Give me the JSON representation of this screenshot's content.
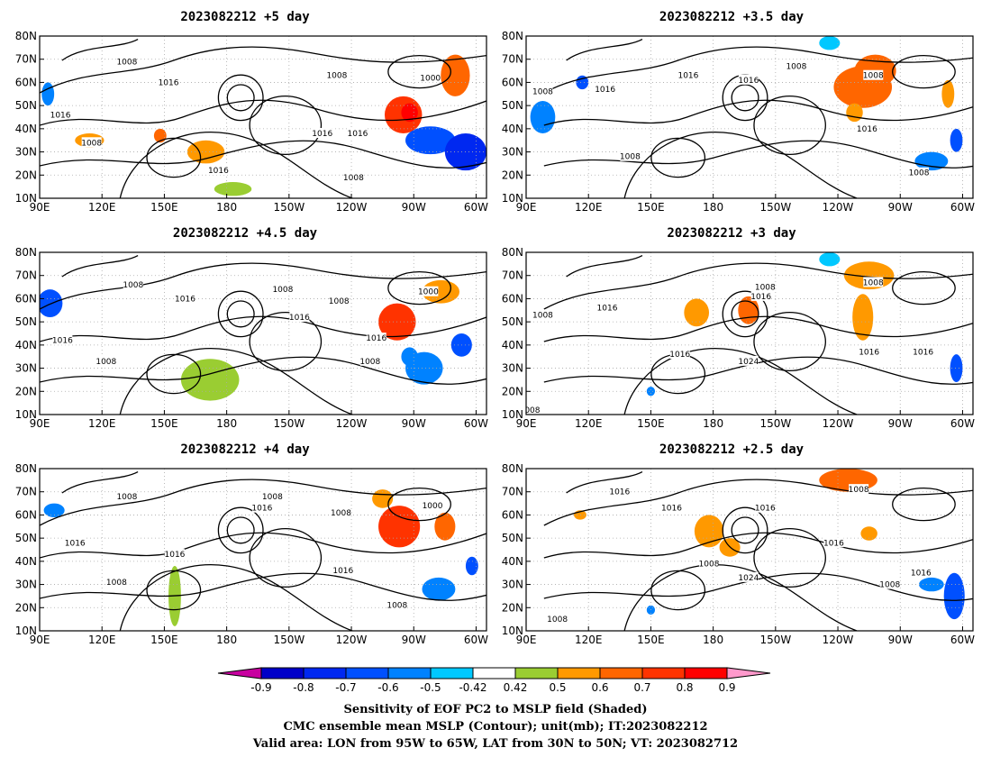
{
  "panels": [
    {
      "title": "2023082212 +5 day",
      "xticks": [
        "90E",
        "120E",
        "150E",
        "180",
        "150W",
        "120W",
        "90W",
        "60W"
      ],
      "yticks": [
        "10N",
        "20N",
        "30N",
        "40N",
        "50N",
        "60N",
        "70N",
        "80N"
      ],
      "contour_labels": [
        {
          "text": "1008",
          "lon": 132,
          "lat": 69
        },
        {
          "text": "1008",
          "lon": 233,
          "lat": 63
        },
        {
          "text": "1016",
          "lon": 152,
          "lat": 60
        },
        {
          "text": "1000",
          "lon": 278,
          "lat": 62
        },
        {
          "text": "1016",
          "lon": 100,
          "lat": 46
        },
        {
          "text": "1008",
          "lon": 115,
          "lat": 34
        },
        {
          "text": "1016",
          "lon": 226,
          "lat": 38
        },
        {
          "text": "1016",
          "lon": 243,
          "lat": 38
        },
        {
          "text": "1016",
          "lon": 176,
          "lat": 22
        },
        {
          "text": "1008",
          "lon": 241,
          "lat": 19
        }
      ],
      "shading": [
        {
          "lon": 265,
          "lat": 46,
          "rx": 9,
          "ry": 8,
          "v": 0.7
        },
        {
          "lon": 268,
          "lat": 47,
          "rx": 4,
          "ry": 4,
          "v": 0.85
        },
        {
          "lon": 290,
          "lat": 63,
          "rx": 7,
          "ry": 9,
          "v": 0.6
        },
        {
          "lon": 278,
          "lat": 35,
          "rx": 12,
          "ry": 6,
          "v": -0.7
        },
        {
          "lon": 295,
          "lat": 30,
          "rx": 10,
          "ry": 8,
          "v": -0.75
        },
        {
          "lon": 170,
          "lat": 30,
          "rx": 9,
          "ry": 5,
          "v": 0.5
        },
        {
          "lon": 183,
          "lat": 14,
          "rx": 9,
          "ry": 3,
          "v": 0.45
        },
        {
          "lon": 148,
          "lat": 37,
          "rx": 3,
          "ry": 3,
          "v": 0.6
        },
        {
          "lon": 114,
          "lat": 35,
          "rx": 7,
          "ry": 3,
          "v": 0.5
        },
        {
          "lon": 94,
          "lat": 55,
          "rx": 3,
          "ry": 5,
          "v": -0.6
        }
      ]
    },
    {
      "title": "2023082212 +3.5 day",
      "xticks": [
        "90E",
        "120E",
        "150E",
        "180",
        "150W",
        "120W",
        "90W",
        "60W"
      ],
      "yticks": [
        "10N",
        "20N",
        "30N",
        "40N",
        "50N",
        "60N",
        "70N",
        "80N"
      ],
      "contour_labels": [
        {
          "text": "1008",
          "lon": 98,
          "lat": 56
        },
        {
          "text": "1016",
          "lon": 128,
          "lat": 57
        },
        {
          "text": "1016",
          "lon": 168,
          "lat": 63
        },
        {
          "text": "1016",
          "lon": 197,
          "lat": 61
        },
        {
          "text": "1008",
          "lon": 220,
          "lat": 67
        },
        {
          "text": "1008",
          "lon": 257,
          "lat": 63
        },
        {
          "text": "1016",
          "lon": 254,
          "lat": 40
        },
        {
          "text": "1008",
          "lon": 140,
          "lat": 28
        },
        {
          "text": "1008",
          "lon": 279,
          "lat": 21
        }
      ],
      "shading": [
        {
          "lon": 252,
          "lat": 58,
          "rx": 14,
          "ry": 9,
          "v": 0.6
        },
        {
          "lon": 258,
          "lat": 65,
          "rx": 10,
          "ry": 7,
          "v": 0.65
        },
        {
          "lon": 248,
          "lat": 47,
          "rx": 4,
          "ry": 4,
          "v": 0.5
        },
        {
          "lon": 293,
          "lat": 55,
          "rx": 3,
          "ry": 6,
          "v": 0.55
        },
        {
          "lon": 98,
          "lat": 45,
          "rx": 6,
          "ry": 7,
          "v": -0.6
        },
        {
          "lon": 117,
          "lat": 60,
          "rx": 3,
          "ry": 3,
          "v": -0.65
        },
        {
          "lon": 285,
          "lat": 26,
          "rx": 8,
          "ry": 4,
          "v": -0.55
        },
        {
          "lon": 297,
          "lat": 35,
          "rx": 3,
          "ry": 5,
          "v": -0.7
        },
        {
          "lon": 236,
          "lat": 77,
          "rx": 5,
          "ry": 3,
          "v": -0.5
        }
      ]
    },
    {
      "title": "2023082212 +4.5 day",
      "xticks": [
        "90E",
        "120E",
        "150E",
        "180",
        "150W",
        "120W",
        "90W",
        "60W"
      ],
      "yticks": [
        "10N",
        "20N",
        "30N",
        "40N",
        "50N",
        "60N",
        "70N",
        "80N"
      ],
      "contour_labels": [
        {
          "text": "1008",
          "lon": 135,
          "lat": 66
        },
        {
          "text": "1016",
          "lon": 160,
          "lat": 60
        },
        {
          "text": "1008",
          "lon": 207,
          "lat": 64
        },
        {
          "text": "1008",
          "lon": 234,
          "lat": 59
        },
        {
          "text": "1000",
          "lon": 277,
          "lat": 63
        },
        {
          "text": "1016",
          "lon": 215,
          "lat": 52
        },
        {
          "text": "1016",
          "lon": 101,
          "lat": 42
        },
        {
          "text": "1008",
          "lon": 122,
          "lat": 33
        },
        {
          "text": "1016",
          "lon": 252,
          "lat": 43
        },
        {
          "text": "1008",
          "lon": 249,
          "lat": 33
        }
      ],
      "shading": [
        {
          "lon": 262,
          "lat": 50,
          "rx": 9,
          "ry": 8,
          "v": 0.7
        },
        {
          "lon": 283,
          "lat": 63,
          "rx": 9,
          "ry": 5,
          "v": 0.5
        },
        {
          "lon": 172,
          "lat": 25,
          "rx": 14,
          "ry": 9,
          "v": 0.45
        },
        {
          "lon": 95,
          "lat": 58,
          "rx": 6,
          "ry": 6,
          "v": -0.65
        },
        {
          "lon": 275,
          "lat": 30,
          "rx": 9,
          "ry": 7,
          "v": -0.6
        },
        {
          "lon": 293,
          "lat": 40,
          "rx": 5,
          "ry": 5,
          "v": -0.7
        },
        {
          "lon": 268,
          "lat": 35,
          "rx": 4,
          "ry": 4,
          "v": -0.55
        }
      ]
    },
    {
      "title": "2023082212 +3 day",
      "xticks": [
        "90E",
        "120E",
        "150E",
        "180",
        "150W",
        "120W",
        "90W",
        "60W"
      ],
      "yticks": [
        "10N",
        "20N",
        "30N",
        "40N",
        "50N",
        "60N",
        "70N",
        "80N"
      ],
      "contour_labels": [
        {
          "text": "1008",
          "lon": 98,
          "lat": 53
        },
        {
          "text": "1016",
          "lon": 129,
          "lat": 56
        },
        {
          "text": "1008",
          "lon": 205,
          "lat": 65
        },
        {
          "text": "1016",
          "lon": 203,
          "lat": 61
        },
        {
          "text": "1008",
          "lon": 257,
          "lat": 67
        },
        {
          "text": "1016",
          "lon": 164,
          "lat": 36
        },
        {
          "text": "1024",
          "lon": 197,
          "lat": 33
        },
        {
          "text": "1016",
          "lon": 255,
          "lat": 37
        },
        {
          "text": "1016",
          "lon": 281,
          "lat": 37
        },
        {
          "text": "008",
          "lon": 93,
          "lat": 12
        }
      ],
      "shading": [
        {
          "lon": 172,
          "lat": 54,
          "rx": 6,
          "ry": 6,
          "v": 0.55
        },
        {
          "lon": 197,
          "lat": 55,
          "rx": 5,
          "ry": 6,
          "v": 0.6
        },
        {
          "lon": 252,
          "lat": 52,
          "rx": 5,
          "ry": 10,
          "v": 0.55
        },
        {
          "lon": 255,
          "lat": 70,
          "rx": 12,
          "ry": 6,
          "v": 0.5
        },
        {
          "lon": 236,
          "lat": 77,
          "rx": 5,
          "ry": 3,
          "v": -0.5
        },
        {
          "lon": 297,
          "lat": 30,
          "rx": 3,
          "ry": 6,
          "v": -0.65
        },
        {
          "lon": 150,
          "lat": 20,
          "rx": 2,
          "ry": 2,
          "v": -0.55
        }
      ]
    },
    {
      "title": "2023082212 +4 day",
      "xticks": [
        "90E",
        "120E",
        "150E",
        "180",
        "150W",
        "120W",
        "90W",
        "60W"
      ],
      "yticks": [
        "10N",
        "20N",
        "30N",
        "40N",
        "50N",
        "60N",
        "70N",
        "80N"
      ],
      "contour_labels": [
        {
          "text": "1008",
          "lon": 132,
          "lat": 68
        },
        {
          "text": "1008",
          "lon": 202,
          "lat": 68
        },
        {
          "text": "1016",
          "lon": 197,
          "lat": 63
        },
        {
          "text": "1008",
          "lon": 235,
          "lat": 61
        },
        {
          "text": "1000",
          "lon": 279,
          "lat": 64
        },
        {
          "text": "1016",
          "lon": 107,
          "lat": 48
        },
        {
          "text": "1016",
          "lon": 155,
          "lat": 43
        },
        {
          "text": "1008",
          "lon": 127,
          "lat": 31
        },
        {
          "text": "1016",
          "lon": 236,
          "lat": 36
        },
        {
          "text": "1008",
          "lon": 262,
          "lat": 21
        }
      ],
      "shading": [
        {
          "lon": 263,
          "lat": 55,
          "rx": 10,
          "ry": 9,
          "v": 0.7
        },
        {
          "lon": 285,
          "lat": 55,
          "rx": 5,
          "ry": 6,
          "v": 0.6
        },
        {
          "lon": 255,
          "lat": 67,
          "rx": 5,
          "ry": 4,
          "v": 0.5
        },
        {
          "lon": 155,
          "lat": 25,
          "rx": 3,
          "ry": 13,
          "v": 0.45
        },
        {
          "lon": 97,
          "lat": 62,
          "rx": 5,
          "ry": 3,
          "v": -0.6
        },
        {
          "lon": 282,
          "lat": 28,
          "rx": 8,
          "ry": 5,
          "v": -0.6
        },
        {
          "lon": 298,
          "lat": 38,
          "rx": 3,
          "ry": 4,
          "v": -0.7
        }
      ]
    },
    {
      "title": "2023082212 +2.5 day",
      "xticks": [
        "90E",
        "120E",
        "150E",
        "180",
        "150W",
        "120W",
        "90W",
        "60W"
      ],
      "yticks": [
        "10N",
        "20N",
        "30N",
        "40N",
        "50N",
        "60N",
        "70N",
        "80N"
      ],
      "contour_labels": [
        {
          "text": "1016",
          "lon": 135,
          "lat": 70
        },
        {
          "text": "1016",
          "lon": 160,
          "lat": 63
        },
        {
          "text": "1016",
          "lon": 205,
          "lat": 63
        },
        {
          "text": "1008",
          "lon": 250,
          "lat": 71
        },
        {
          "text": "1008",
          "lon": 178,
          "lat": 39
        },
        {
          "text": "1024",
          "lon": 197,
          "lat": 33
        },
        {
          "text": "1016",
          "lon": 238,
          "lat": 48
        },
        {
          "text": "1008",
          "lon": 265,
          "lat": 30
        },
        {
          "text": "1016",
          "lon": 280,
          "lat": 35
        },
        {
          "text": "1008",
          "lon": 105,
          "lat": 15
        }
      ],
      "shading": [
        {
          "lon": 245,
          "lat": 75,
          "rx": 14,
          "ry": 5,
          "v": 0.6
        },
        {
          "lon": 178,
          "lat": 53,
          "rx": 7,
          "ry": 7,
          "v": 0.55
        },
        {
          "lon": 188,
          "lat": 46,
          "rx": 5,
          "ry": 4,
          "v": 0.5
        },
        {
          "lon": 255,
          "lat": 52,
          "rx": 4,
          "ry": 3,
          "v": 0.5
        },
        {
          "lon": 116,
          "lat": 60,
          "rx": 3,
          "ry": 2,
          "v": 0.5
        },
        {
          "lon": 296,
          "lat": 25,
          "rx": 5,
          "ry": 10,
          "v": -0.65
        },
        {
          "lon": 285,
          "lat": 30,
          "rx": 6,
          "ry": 3,
          "v": -0.55
        },
        {
          "lon": 150,
          "lat": 19,
          "rx": 2,
          "ry": 2,
          "v": -0.55
        }
      ]
    }
  ],
  "map_extent": {
    "lon_min": 90,
    "lon_max": 305,
    "lat_min": 10,
    "lat_max": 80
  },
  "colorbar": {
    "boundaries": [
      "-0.9",
      "-0.8",
      "-0.7",
      "-0.6",
      "-0.5",
      "-0.42",
      "0.42",
      "0.5",
      "0.6",
      "0.7",
      "0.8",
      "0.9"
    ],
    "colors": [
      "#0000c8",
      "#0028f0",
      "#0050ff",
      "#0082ff",
      "#00c8ff",
      "#ffffff",
      "#9acd32",
      "#ff9900",
      "#ff6600",
      "#ff3300",
      "#ff0000"
    ],
    "under_color": "#c800a0",
    "over_color": "#ff99cc"
  },
  "caption": {
    "line1": "Sensitivity of EOF PC2 to MSLP field (Shaded)",
    "line2": "CMC ensemble mean MSLP (Contour); unit(mb); IT:2023082212",
    "line3": "Valid area: LON from 95W to 65W, LAT from 30N to 50N; VT: 2023082712"
  }
}
